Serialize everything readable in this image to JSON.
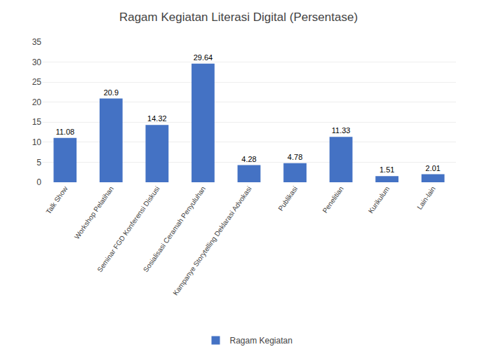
{
  "chart_data": {
    "type": "bar",
    "title": "Ragam Kegiatan Literasi Digital (Persentase)",
    "categories": [
      "Talk Show",
      "Workshop Pelatihan",
      "Seminar FGD Konferensi Diskusi",
      "Sosialisasi Ceramah Penyuluhan",
      "Kampanye Storytelling Deklarasi Advokasi",
      "Publikasi",
      "Penelitian",
      "Kurikulum",
      "Lain-lain"
    ],
    "series": [
      {
        "name": "Ragam Kegiatan",
        "color": "#4472C4",
        "values": [
          11.08,
          20.9,
          14.32,
          29.64,
          4.28,
          4.78,
          11.33,
          1.51,
          2.01
        ]
      }
    ],
    "ylim": [
      0,
      35
    ],
    "yticks": [
      0,
      5,
      10,
      15,
      20,
      25,
      30,
      35
    ],
    "grid": true,
    "legend": "bottom",
    "data_labels": true
  }
}
